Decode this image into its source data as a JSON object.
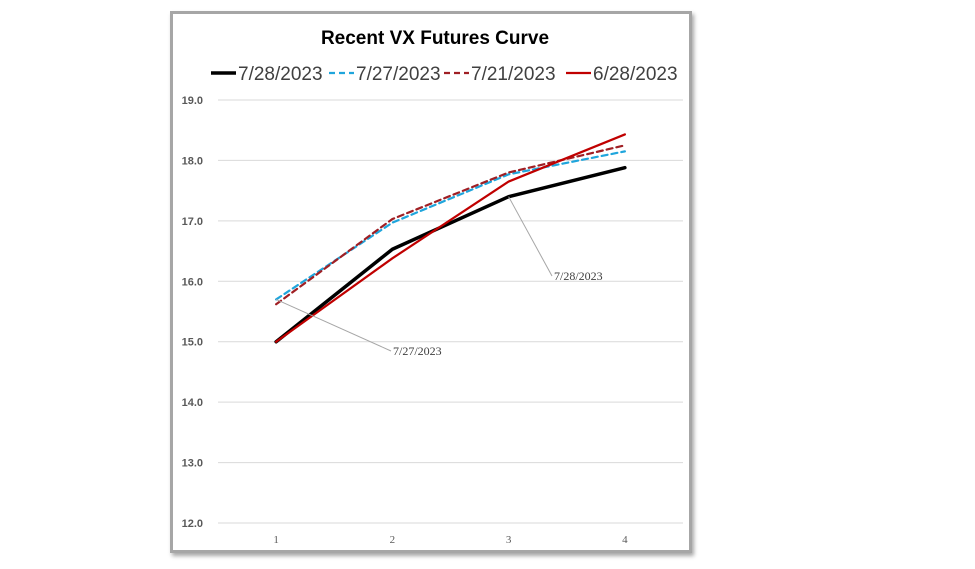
{
  "chart_data": {
    "type": "line",
    "title": "Recent VX Futures Curve",
    "xlabel": "",
    "ylabel": "",
    "x": [
      1,
      2,
      3,
      4
    ],
    "ylim": [
      12.0,
      19.0
    ],
    "yticks": [
      "12.0",
      "13.0",
      "14.0",
      "15.0",
      "16.0",
      "17.0",
      "18.0",
      "19.0"
    ],
    "grid": true,
    "legend_position": "top",
    "series": [
      {
        "name": "7/28/2023",
        "values": [
          15.0,
          16.53,
          17.4,
          17.88
        ],
        "color": "#000000",
        "dash": "solid",
        "width": 3.5
      },
      {
        "name": "7/27/2023",
        "values": [
          15.7,
          16.97,
          17.77,
          18.15
        ],
        "color": "#1fa5dc",
        "dash": "dashed",
        "width": 2.2
      },
      {
        "name": "7/21/2023",
        "values": [
          15.62,
          17.03,
          17.8,
          18.25
        ],
        "color": "#a01f24",
        "dash": "dashed",
        "width": 2.2
      },
      {
        "name": "6/28/2023",
        "values": [
          15.0,
          16.38,
          17.65,
          18.43
        ],
        "color": "#c00000",
        "dash": "solid",
        "width": 2.2
      }
    ],
    "annotations": [
      {
        "text": "7/28/2023",
        "series": 0,
        "x": 3
      },
      {
        "text": "7/27/2023",
        "series": 1,
        "x": 1
      }
    ]
  }
}
